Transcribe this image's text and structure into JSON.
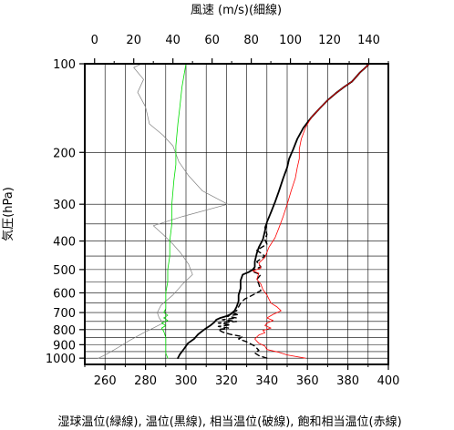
{
  "chart_data": {
    "type": "line",
    "title": "",
    "top_axis_label": "風速 (m/s)(細線)",
    "left_axis_label": "気圧(hPa)",
    "bottom_axis_label": "湿球温位(緑線), 温位(黒線), 相当温位(破線), 飽和相当温位(赤線)",
    "top_axis_ticks": [
      "0",
      "20",
      "40",
      "60",
      "80",
      "100",
      "120",
      "140"
    ],
    "bottom_axis_ticks": [
      "260",
      "280",
      "300",
      "320",
      "340",
      "360",
      "380",
      "400"
    ],
    "left_axis_ticks": [
      "100",
      "200",
      "300",
      "400",
      "500",
      "600",
      "700",
      "800",
      "900",
      "1000"
    ],
    "xlim_temperature": [
      250,
      400
    ],
    "xlim_wind": [
      -5,
      150
    ],
    "ylim_pressure": [
      1050,
      100
    ],
    "y_scale": "log",
    "grid": true,
    "series": [
      {
        "key": "wind_speed",
        "color": "#808080",
        "width": 0.7,
        "dash": "",
        "axis": "wind",
        "points": [
          [
            2,
            1000
          ],
          [
            6,
            970
          ],
          [
            12,
            920
          ],
          [
            18,
            870
          ],
          [
            25,
            820
          ],
          [
            30,
            790
          ],
          [
            35,
            760
          ],
          [
            33,
            730
          ],
          [
            32,
            700
          ],
          [
            34,
            660
          ],
          [
            40,
            610
          ],
          [
            45,
            560
          ],
          [
            50,
            520
          ],
          [
            48,
            480
          ],
          [
            44,
            440
          ],
          [
            40,
            410
          ],
          [
            35,
            380
          ],
          [
            30,
            355
          ],
          [
            45,
            330
          ],
          [
            68,
            300
          ],
          [
            55,
            270
          ],
          [
            48,
            240
          ],
          [
            43,
            215
          ],
          [
            40,
            190
          ],
          [
            35,
            175
          ],
          [
            28,
            160
          ],
          [
            26,
            140
          ],
          [
            22,
            125
          ],
          [
            25,
            113
          ],
          [
            20,
            103
          ],
          [
            24,
            100
          ]
        ]
      },
      {
        "key": "wet_bulb_potential_temperature",
        "color": "#00dd00",
        "width": 0.8,
        "dash": "",
        "axis": "temperature",
        "points": [
          [
            291,
            1000
          ],
          [
            290,
            960
          ],
          [
            290,
            900
          ],
          [
            290,
            850
          ],
          [
            289,
            810
          ],
          [
            288,
            790
          ],
          [
            290,
            775
          ],
          [
            288,
            760
          ],
          [
            291,
            745
          ],
          [
            289,
            730
          ],
          [
            291,
            715
          ],
          [
            289,
            700
          ],
          [
            290,
            680
          ],
          [
            290,
            640
          ],
          [
            290,
            600
          ],
          [
            291,
            550
          ],
          [
            291,
            500
          ],
          [
            292,
            450
          ],
          [
            292,
            400
          ],
          [
            293,
            350
          ],
          [
            293,
            300
          ],
          [
            294,
            250
          ],
          [
            295,
            220
          ],
          [
            295,
            190
          ],
          [
            296,
            160
          ],
          [
            297,
            140
          ],
          [
            298,
            120
          ],
          [
            300,
            100
          ]
        ]
      },
      {
        "key": "potential_temperature",
        "color": "#000000",
        "width": 1.8,
        "dash": "",
        "axis": "temperature",
        "points": [
          [
            296,
            1000
          ],
          [
            297,
            970
          ],
          [
            299,
            930
          ],
          [
            301,
            890
          ],
          [
            304,
            860
          ],
          [
            306,
            830
          ],
          [
            309,
            800
          ],
          [
            312,
            775
          ],
          [
            314,
            755
          ],
          [
            315,
            740
          ],
          [
            317,
            730
          ],
          [
            320,
            720
          ],
          [
            322,
            710
          ],
          [
            324,
            690
          ],
          [
            325,
            670
          ],
          [
            326,
            640
          ],
          [
            326,
            610
          ],
          [
            327,
            580
          ],
          [
            327,
            545
          ],
          [
            328,
            520
          ],
          [
            331,
            510
          ],
          [
            333,
            500
          ],
          [
            334,
            490
          ],
          [
            334,
            470
          ],
          [
            335,
            440
          ],
          [
            336,
            420
          ],
          [
            338,
            395
          ],
          [
            339,
            370
          ],
          [
            340,
            345
          ],
          [
            342,
            320
          ],
          [
            344,
            295
          ],
          [
            346,
            270
          ],
          [
            348,
            245
          ],
          [
            350,
            225
          ],
          [
            351,
            210
          ],
          [
            353,
            195
          ],
          [
            355,
            180
          ],
          [
            358,
            165
          ],
          [
            362,
            152
          ],
          [
            366,
            142
          ],
          [
            370,
            133
          ],
          [
            374,
            126
          ],
          [
            378,
            120
          ],
          [
            382,
            115
          ],
          [
            384,
            111
          ],
          [
            386,
            107
          ],
          [
            388,
            104
          ],
          [
            390,
            101
          ],
          [
            389,
            100
          ]
        ]
      },
      {
        "key": "equivalent_potential_temperature",
        "color": "#000000",
        "width": 1.4,
        "dash": "5,4",
        "axis": "temperature",
        "points": [
          [
            340,
            1000
          ],
          [
            336,
            980
          ],
          [
            334,
            960
          ],
          [
            336,
            940
          ],
          [
            334,
            910
          ],
          [
            330,
            880
          ],
          [
            326,
            860
          ],
          [
            328,
            845
          ],
          [
            322,
            830
          ],
          [
            318,
            815
          ],
          [
            316,
            800
          ],
          [
            321,
            790
          ],
          [
            316,
            780
          ],
          [
            322,
            770
          ],
          [
            316,
            760
          ],
          [
            325,
            750
          ],
          [
            318,
            740
          ],
          [
            325,
            730
          ],
          [
            320,
            720
          ],
          [
            326,
            710
          ],
          [
            322,
            700
          ],
          [
            325,
            690
          ],
          [
            326,
            670
          ],
          [
            327,
            650
          ],
          [
            329,
            630
          ],
          [
            333,
            610
          ],
          [
            337,
            590
          ],
          [
            336,
            560
          ],
          [
            335,
            540
          ],
          [
            337,
            520
          ],
          [
            332,
            505
          ],
          [
            337,
            490
          ],
          [
            335,
            470
          ],
          [
            339,
            450
          ],
          [
            335,
            430
          ],
          [
            340,
            410
          ],
          [
            339,
            395
          ],
          [
            340,
            380
          ],
          [
            339,
            360
          ],
          [
            340,
            345
          ],
          [
            342,
            320
          ],
          [
            344,
            295
          ],
          [
            346,
            270
          ],
          [
            348,
            245
          ],
          [
            350,
            225
          ],
          [
            351,
            210
          ],
          [
            353,
            195
          ],
          [
            355,
            180
          ],
          [
            358,
            165
          ],
          [
            362,
            152
          ],
          [
            366,
            142
          ],
          [
            370,
            133
          ],
          [
            374,
            126
          ],
          [
            378,
            120
          ],
          [
            382,
            115
          ],
          [
            384,
            111
          ],
          [
            386,
            107
          ],
          [
            388,
            104
          ],
          [
            390,
            101
          ],
          [
            389,
            100
          ]
        ]
      },
      {
        "key": "saturated_equivalent_potential_temperature",
        "color": "#ff0000",
        "width": 0.8,
        "dash": "",
        "axis": "temperature",
        "points": [
          [
            359,
            1000
          ],
          [
            350,
            975
          ],
          [
            346,
            955
          ],
          [
            340,
            935
          ],
          [
            339,
            910
          ],
          [
            336,
            890
          ],
          [
            334,
            860
          ],
          [
            336,
            835
          ],
          [
            339,
            820
          ],
          [
            338,
            805
          ],
          [
            342,
            790
          ],
          [
            339,
            775
          ],
          [
            340,
            760
          ],
          [
            343,
            745
          ],
          [
            340,
            730
          ],
          [
            343,
            710
          ],
          [
            347,
            690
          ],
          [
            345,
            670
          ],
          [
            342,
            650
          ],
          [
            341,
            630
          ],
          [
            340,
            610
          ],
          [
            338,
            585
          ],
          [
            337,
            560
          ],
          [
            335,
            540
          ],
          [
            336,
            515
          ],
          [
            333,
            505
          ],
          [
            337,
            495
          ],
          [
            336,
            475
          ],
          [
            339,
            455
          ],
          [
            341,
            420
          ],
          [
            344,
            390
          ],
          [
            346,
            360
          ],
          [
            348,
            330
          ],
          [
            350,
            300
          ],
          [
            352,
            270
          ],
          [
            354,
            245
          ],
          [
            355,
            225
          ],
          [
            356,
            210
          ],
          [
            356,
            195
          ],
          [
            357,
            180
          ],
          [
            359,
            165
          ],
          [
            362,
            152
          ],
          [
            366,
            142
          ],
          [
            370,
            133
          ],
          [
            374,
            126
          ],
          [
            378,
            120
          ],
          [
            382,
            115
          ],
          [
            384,
            111
          ],
          [
            386,
            107
          ],
          [
            388,
            104
          ],
          [
            390,
            101
          ],
          [
            389,
            100
          ]
        ]
      }
    ]
  }
}
